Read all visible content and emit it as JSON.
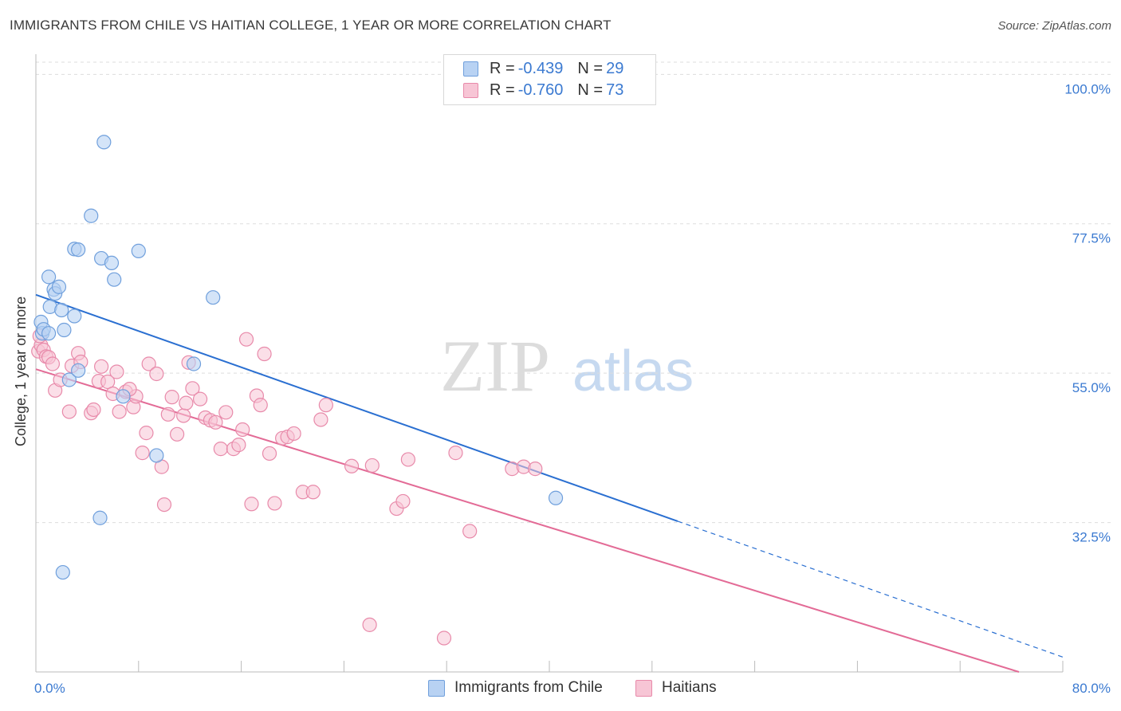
{
  "title": "IMMIGRANTS FROM CHILE VS HAITIAN COLLEGE, 1 YEAR OR MORE CORRELATION CHART",
  "source": "Source: ZipAtlas.com",
  "watermark": {
    "zip": "ZIP",
    "atlas": "atlas"
  },
  "legend": {
    "rows": [
      {
        "r_label": "R =",
        "r_value": "-0.439",
        "n_label": "N =",
        "n_value": "29"
      },
      {
        "r_label": "R =",
        "r_value": "-0.760",
        "n_label": "N =",
        "n_value": "73"
      }
    ]
  },
  "bottom_legend": [
    "Immigrants from Chile",
    "Haitians"
  ],
  "colors": {
    "chile_fill": "#b8d2f3",
    "chile_stroke": "#6f9fdc",
    "chile_line": "#2a6fd1",
    "haiti_fill": "#f7c5d5",
    "haiti_stroke": "#e88aaa",
    "haiti_line": "#e36b96",
    "tick_label": "#3b7ad1",
    "grid": "#dddddd"
  },
  "chart_data": {
    "type": "scatter",
    "title": "IMMIGRANTS FROM CHILE VS HAITIAN COLLEGE, 1 YEAR OR MORE CORRELATION CHART",
    "xlabel": "",
    "ylabel": "College, 1 year or more",
    "xlim": [
      0,
      80
    ],
    "ylim": [
      10,
      104
    ],
    "x_tick_labels": [
      "0.0%",
      "80.0%"
    ],
    "y_ticks": [
      32.5,
      55.0,
      77.5,
      100.0
    ],
    "y_tick_labels": [
      "32.5%",
      "55.0%",
      "77.5%",
      "100.0%"
    ],
    "grid": true,
    "legend_position": "top-center",
    "series": [
      {
        "name": "Immigrants from Chile",
        "points": [
          [
            0.4,
            62.7
          ],
          [
            0.5,
            61.0
          ],
          [
            0.6,
            61.6
          ],
          [
            1.0,
            69.5
          ],
          [
            1.1,
            65.0
          ],
          [
            1.4,
            67.6
          ],
          [
            1.5,
            67.0
          ],
          [
            1.8,
            68.0
          ],
          [
            2.0,
            64.5
          ],
          [
            2.2,
            61.5
          ],
          [
            2.6,
            54.0
          ],
          [
            3.0,
            73.7
          ],
          [
            3.3,
            73.6
          ],
          [
            3.0,
            63.6
          ],
          [
            3.3,
            55.4
          ],
          [
            4.3,
            78.7
          ],
          [
            5.1,
            72.3
          ],
          [
            5.3,
            89.8
          ],
          [
            5.9,
            71.6
          ],
          [
            6.1,
            69.1
          ],
          [
            6.8,
            51.5
          ],
          [
            8.0,
            73.4
          ],
          [
            9.4,
            42.6
          ],
          [
            12.3,
            56.4
          ],
          [
            13.8,
            66.4
          ],
          [
            5.0,
            33.2
          ],
          [
            2.1,
            25.0
          ],
          [
            40.5,
            36.2
          ],
          [
            1.0,
            61.0
          ]
        ],
        "trend": {
          "x": [
            0,
            50
          ],
          "y": [
            66.8,
            32.7
          ]
        }
      },
      {
        "name": "Haitians",
        "points": [
          [
            0.2,
            58.3
          ],
          [
            0.4,
            59.2
          ],
          [
            0.6,
            58.5
          ],
          [
            0.8,
            57.5
          ],
          [
            1.0,
            57.4
          ],
          [
            1.3,
            56.4
          ],
          [
            1.5,
            52.4
          ],
          [
            1.9,
            54.0
          ],
          [
            2.6,
            49.2
          ],
          [
            2.8,
            56.1
          ],
          [
            3.3,
            58.0
          ],
          [
            3.5,
            56.7
          ],
          [
            4.3,
            49.0
          ],
          [
            4.5,
            49.5
          ],
          [
            4.9,
            53.8
          ],
          [
            5.1,
            56.0
          ],
          [
            5.6,
            53.7
          ],
          [
            6.0,
            51.9
          ],
          [
            6.3,
            55.2
          ],
          [
            6.5,
            49.2
          ],
          [
            7.0,
            52.2
          ],
          [
            7.6,
            49.9
          ],
          [
            7.8,
            51.5
          ],
          [
            7.3,
            52.6
          ],
          [
            8.3,
            43.0
          ],
          [
            8.6,
            46.0
          ],
          [
            8.8,
            56.4
          ],
          [
            9.4,
            54.9
          ],
          [
            9.8,
            40.9
          ],
          [
            10.0,
            35.2
          ],
          [
            10.3,
            48.8
          ],
          [
            10.6,
            51.4
          ],
          [
            11.0,
            45.8
          ],
          [
            11.5,
            48.6
          ],
          [
            11.7,
            50.5
          ],
          [
            11.9,
            56.6
          ],
          [
            12.2,
            52.7
          ],
          [
            12.8,
            51.1
          ],
          [
            13.2,
            48.3
          ],
          [
            13.6,
            47.9
          ],
          [
            14.0,
            47.6
          ],
          [
            14.4,
            43.6
          ],
          [
            14.8,
            49.1
          ],
          [
            15.4,
            43.6
          ],
          [
            15.8,
            44.2
          ],
          [
            16.1,
            46.5
          ],
          [
            16.4,
            60.1
          ],
          [
            16.8,
            35.3
          ],
          [
            17.2,
            51.6
          ],
          [
            17.5,
            50.2
          ],
          [
            17.8,
            57.9
          ],
          [
            18.2,
            42.9
          ],
          [
            18.6,
            35.4
          ],
          [
            19.2,
            45.2
          ],
          [
            19.6,
            45.4
          ],
          [
            20.1,
            45.9
          ],
          [
            20.8,
            37.1
          ],
          [
            21.6,
            37.1
          ],
          [
            22.2,
            48.0
          ],
          [
            22.6,
            50.2
          ],
          [
            26.2,
            41.1
          ],
          [
            28.1,
            34.6
          ],
          [
            28.6,
            35.7
          ],
          [
            29.0,
            42.0
          ],
          [
            31.8,
            15.1
          ],
          [
            32.7,
            43.0
          ],
          [
            33.8,
            31.2
          ],
          [
            37.1,
            40.6
          ],
          [
            38.0,
            40.9
          ],
          [
            38.9,
            40.6
          ],
          [
            26.0,
            17.1
          ],
          [
            24.6,
            41.0
          ],
          [
            0.3,
            60.6
          ]
        ],
        "trend": {
          "x": [
            0,
            80
          ],
          "y": [
            55.6,
            10.0
          ]
        }
      }
    ]
  }
}
